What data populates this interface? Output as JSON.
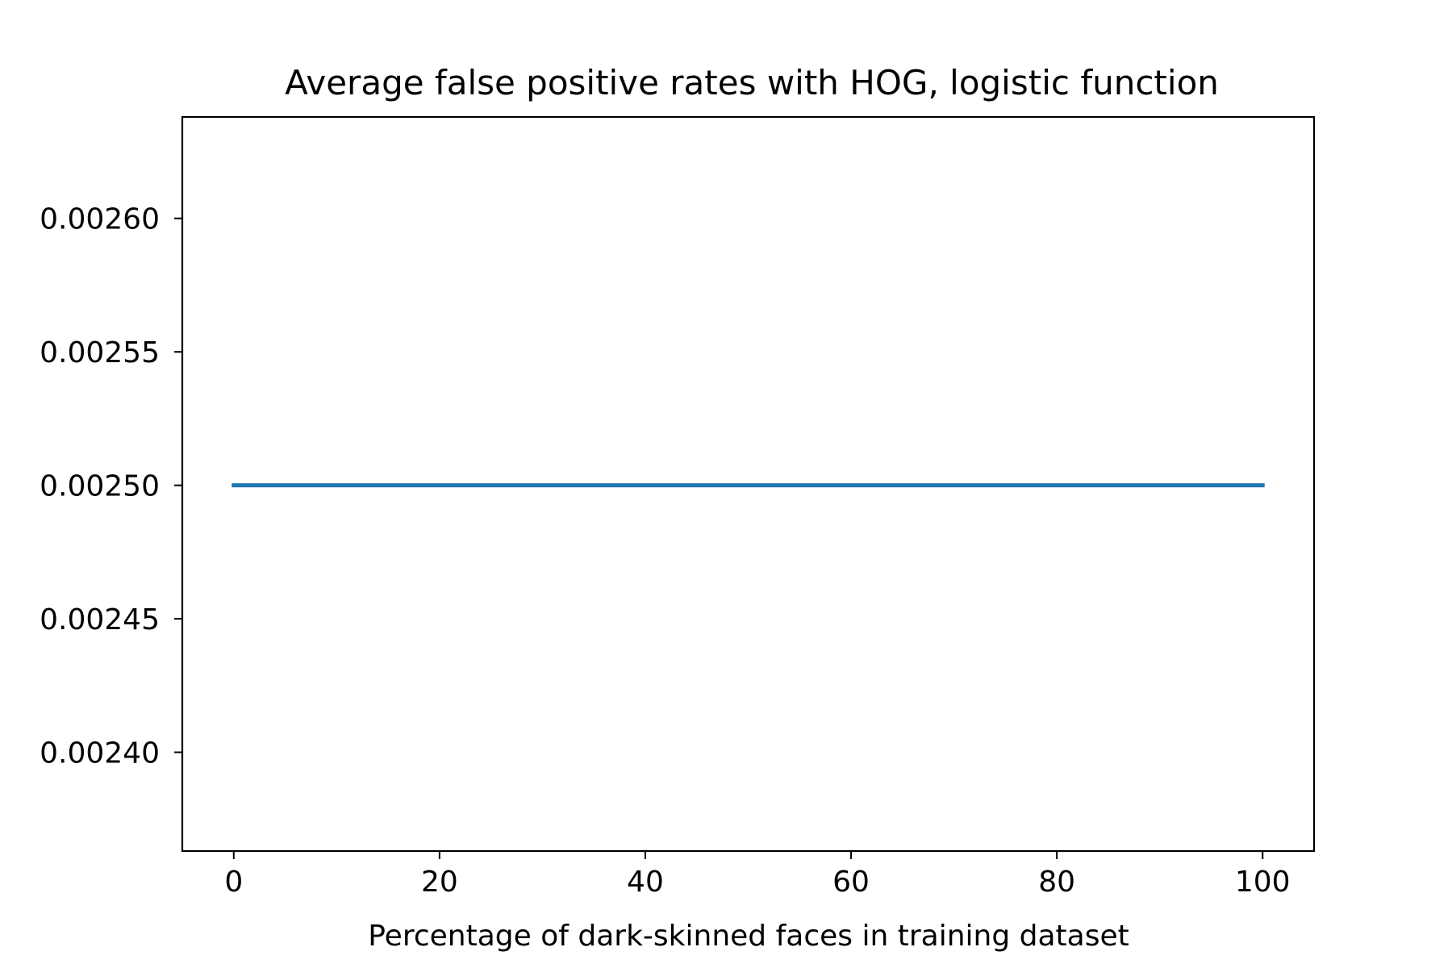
{
  "chart_data": {
    "type": "line",
    "title": "Average false positive rates with HOG, logistic function",
    "xlabel": "Percentage of dark-skinned faces in training dataset",
    "ylabel": "",
    "x": [
      0,
      10,
      20,
      30,
      40,
      50,
      60,
      70,
      80,
      90,
      100
    ],
    "series": [
      {
        "values": [
          0.0025,
          0.0025,
          0.0025,
          0.0025,
          0.0025,
          0.0025,
          0.0025,
          0.0025,
          0.0025,
          0.0025,
          0.0025
        ],
        "color": "#1f77b4"
      }
    ],
    "xlim": [
      -5,
      105
    ],
    "ylim": [
      0.002363,
      0.002638
    ],
    "xticks": [
      0,
      20,
      40,
      60,
      80,
      100
    ],
    "xtick_labels": [
      "0",
      "20",
      "40",
      "60",
      "80",
      "100"
    ],
    "yticks": [
      0.0024,
      0.00245,
      0.0025,
      0.00255,
      0.0026
    ],
    "ytick_labels": [
      "0.00240",
      "0.00245",
      "0.00250",
      "0.00255",
      "0.00260"
    ],
    "grid": false,
    "legend": "none"
  }
}
